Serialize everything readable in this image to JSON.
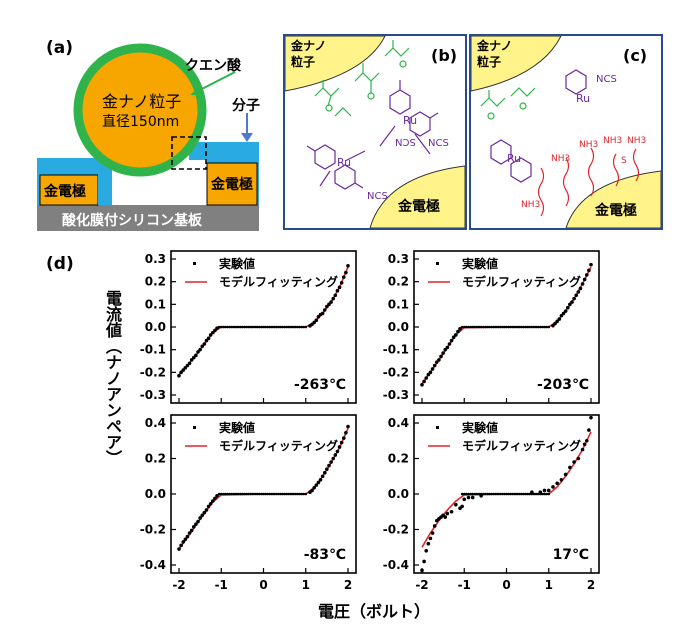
{
  "panel_a": {
    "label": "(a)",
    "citric_acid": "クエン酸",
    "particle_line1": "金ナノ粒子",
    "particle_line2": "直径150nm",
    "molecule": "分子",
    "electrode_left": "金電極",
    "electrode_right": "金電極",
    "substrate": "酸化膜付シリコン基板",
    "colors": {
      "gold": "#f7a600",
      "green": "#2fb34a",
      "blue": "#29abe2",
      "gray": "#808080"
    }
  },
  "panel_b": {
    "label": "(b)",
    "particle": [
      "金ナノ",
      "粒子"
    ],
    "electrode": "金電極",
    "ru": "Ru",
    "ncs": "NCS",
    "ncs_flipped": "SCN"
  },
  "panel_c": {
    "label": "(c)",
    "particle": [
      "金ナノ",
      "粒子"
    ],
    "electrode": "金電極",
    "ru": "Ru",
    "ncs": "NCS",
    "nh3": "NH3",
    "s": "S",
    "plus": "+"
  },
  "panel_d": {
    "label": "(d)",
    "y_axis_label": "電流値（ナノアンペア）",
    "x_axis_label": "電圧（ボルト）",
    "legend_exp": "実験値",
    "legend_model": "モデルフィッティング",
    "colors": {
      "model": "#e0262d",
      "exp": "#000000"
    }
  },
  "chart_data": [
    {
      "type": "scatter",
      "title": "-263℃",
      "xlabel": "電圧（ボルト）",
      "ylabel": "電流値（ナノアンペア）",
      "xlim": [
        -2,
        2
      ],
      "ylim": [
        -0.3,
        0.3
      ],
      "xticks": [],
      "yticks": [
        -0.3,
        -0.2,
        -0.1,
        0.0,
        0.1,
        0.2,
        0.3
      ],
      "ytick_labels": [
        "-0.3",
        "-0.2",
        "-0.1",
        "0.0",
        "0.1",
        "0.2",
        "0.3"
      ],
      "model_x": [
        -2.0,
        -1.8,
        -1.6,
        -1.4,
        -1.2,
        -1.0,
        0.0,
        1.0,
        1.2,
        1.4,
        1.6,
        1.8,
        2.0
      ],
      "model_y": [
        -0.21,
        -0.17,
        -0.125,
        -0.075,
        -0.025,
        0.0,
        0.0,
        0.0,
        0.02,
        0.06,
        0.11,
        0.175,
        0.265
      ],
      "exp_x": [
        -2.0,
        -1.95,
        -1.9,
        -1.85,
        -1.8,
        -1.75,
        -1.7,
        -1.65,
        -1.6,
        -1.55,
        -1.5,
        -1.45,
        -1.4,
        -1.35,
        -1.3,
        -1.25,
        -1.2,
        -1.15,
        -1.1,
        1.1,
        1.15,
        1.2,
        1.25,
        1.3,
        1.35,
        1.4,
        1.45,
        1.5,
        1.55,
        1.6,
        1.65,
        1.7,
        1.75,
        1.8,
        1.85,
        1.9,
        1.95,
        2.0
      ],
      "exp_y": [
        -0.215,
        -0.2,
        -0.19,
        -0.18,
        -0.17,
        -0.16,
        -0.145,
        -0.135,
        -0.125,
        -0.11,
        -0.1,
        -0.085,
        -0.075,
        -0.06,
        -0.05,
        -0.035,
        -0.025,
        -0.015,
        -0.005,
        0.005,
        0.012,
        0.02,
        0.03,
        0.045,
        0.055,
        0.06,
        0.075,
        0.09,
        0.1,
        0.11,
        0.125,
        0.14,
        0.16,
        0.175,
        0.195,
        0.22,
        0.24,
        0.27
      ],
      "legend": [
        "実験値",
        "モデルフィッティング"
      ],
      "temperature": "-263℃"
    },
    {
      "type": "scatter",
      "title": "-203℃",
      "xlim": [
        -2,
        2
      ],
      "ylim": [
        -0.3,
        0.3
      ],
      "xticks": [],
      "yticks": [
        -0.3,
        -0.2,
        -0.1,
        0.0,
        0.1,
        0.2,
        0.3
      ],
      "ytick_labels": [
        "-0.3",
        "-0.2",
        "-0.1",
        "0.0",
        "0.1",
        "0.2",
        "0.3"
      ],
      "model_x": [
        -2.0,
        -1.8,
        -1.6,
        -1.4,
        -1.2,
        -1.0,
        0.0,
        1.0,
        1.2,
        1.4,
        1.6,
        1.8,
        2.0
      ],
      "model_y": [
        -0.25,
        -0.2,
        -0.145,
        -0.09,
        -0.035,
        -0.003,
        0.0,
        0.0,
        0.025,
        0.07,
        0.125,
        0.19,
        0.265
      ],
      "exp_x": [
        -2.0,
        -1.95,
        -1.9,
        -1.85,
        -1.8,
        -1.75,
        -1.7,
        -1.65,
        -1.6,
        -1.55,
        -1.5,
        -1.45,
        -1.4,
        -1.35,
        -1.3,
        -1.25,
        -1.2,
        -1.15,
        -1.1,
        1.1,
        1.15,
        1.2,
        1.25,
        1.3,
        1.35,
        1.4,
        1.45,
        1.5,
        1.55,
        1.6,
        1.65,
        1.7,
        1.75,
        1.8,
        1.85,
        1.9,
        1.95,
        2.0
      ],
      "exp_y": [
        -0.255,
        -0.24,
        -0.225,
        -0.21,
        -0.2,
        -0.185,
        -0.17,
        -0.155,
        -0.145,
        -0.13,
        -0.115,
        -0.1,
        -0.09,
        -0.075,
        -0.06,
        -0.045,
        -0.035,
        -0.02,
        -0.008,
        0.006,
        0.015,
        0.025,
        0.035,
        0.05,
        0.06,
        0.07,
        0.085,
        0.1,
        0.11,
        0.125,
        0.14,
        0.155,
        0.17,
        0.19,
        0.21,
        0.23,
        0.25,
        0.275
      ],
      "legend": [
        "実験値",
        "モデルフィッティング"
      ],
      "temperature": "-203℃"
    },
    {
      "type": "scatter",
      "title": "-83℃",
      "xlim": [
        -2,
        2
      ],
      "ylim": [
        -0.4,
        0.4
      ],
      "xticks": [
        -2,
        -1,
        0,
        1,
        2
      ],
      "xtick_labels": [
        "-2",
        "-1",
        "0",
        "1",
        "2"
      ],
      "yticks": [
        -0.4,
        -0.2,
        0.0,
        0.2,
        0.4
      ],
      "ytick_labels": [
        "-0.4",
        "-0.2",
        "0.0",
        "0.2",
        "0.4"
      ],
      "model_x": [
        -2.0,
        -1.8,
        -1.6,
        -1.4,
        -1.2,
        -1.0,
        0.0,
        1.0,
        1.2,
        1.4,
        1.6,
        1.8,
        2.0
      ],
      "model_y": [
        -0.31,
        -0.245,
        -0.175,
        -0.11,
        -0.045,
        -0.005,
        0.0,
        0.0,
        0.035,
        0.1,
        0.175,
        0.26,
        0.37
      ],
      "exp_x": [
        -2.0,
        -1.95,
        -1.9,
        -1.85,
        -1.8,
        -1.75,
        -1.7,
        -1.65,
        -1.6,
        -1.55,
        -1.5,
        -1.45,
        -1.4,
        -1.35,
        -1.3,
        -1.25,
        -1.2,
        -1.15,
        -1.1,
        1.1,
        1.15,
        1.2,
        1.25,
        1.3,
        1.35,
        1.4,
        1.45,
        1.5,
        1.55,
        1.6,
        1.65,
        1.7,
        1.75,
        1.8,
        1.85,
        1.9,
        1.95,
        2.0
      ],
      "exp_y": [
        -0.31,
        -0.29,
        -0.27,
        -0.255,
        -0.24,
        -0.22,
        -0.205,
        -0.185,
        -0.17,
        -0.155,
        -0.135,
        -0.12,
        -0.105,
        -0.09,
        -0.07,
        -0.055,
        -0.04,
        -0.025,
        -0.01,
        0.01,
        0.02,
        0.035,
        0.05,
        0.065,
        0.08,
        0.1,
        0.12,
        0.14,
        0.16,
        0.18,
        0.2,
        0.22,
        0.24,
        0.265,
        0.29,
        0.315,
        0.345,
        0.38
      ],
      "legend": [
        "実験値",
        "モデルフィッティング"
      ],
      "temperature": "-83℃"
    },
    {
      "type": "scatter",
      "title": "17℃",
      "xlim": [
        -2,
        2
      ],
      "ylim": [
        -0.4,
        0.4
      ],
      "xticks": [
        -2,
        -1,
        0,
        1,
        2
      ],
      "xtick_labels": [
        "-2",
        "-1",
        "0",
        "1",
        "2"
      ],
      "yticks": [
        -0.4,
        -0.2,
        0.0,
        0.2,
        0.4
      ],
      "ytick_labels": [
        "-0.4",
        "-0.2",
        "0.0",
        "0.2",
        "0.4"
      ],
      "model_x": [
        -2.0,
        -1.8,
        -1.6,
        -1.4,
        -1.2,
        -1.0,
        0.0,
        1.0,
        1.2,
        1.4,
        1.6,
        1.8,
        2.0
      ],
      "model_y": [
        -0.3,
        -0.22,
        -0.15,
        -0.09,
        -0.04,
        -0.005,
        0.0,
        0.0,
        0.04,
        0.1,
        0.17,
        0.25,
        0.35
      ],
      "exp_x": [
        -2.0,
        -1.95,
        -1.9,
        -1.85,
        -1.8,
        -1.75,
        -1.7,
        -1.65,
        -1.6,
        -1.55,
        -1.5,
        -1.45,
        -1.4,
        -1.3,
        -1.2,
        -1.1,
        -1.05,
        -1.0,
        -0.9,
        -0.8,
        -0.6,
        0.6,
        0.8,
        0.9,
        1.0,
        1.1,
        1.2,
        1.3,
        1.4,
        1.5,
        1.6,
        1.7,
        1.8,
        1.85,
        1.9,
        1.95,
        2.0
      ],
      "exp_y": [
        -0.43,
        -0.38,
        -0.32,
        -0.28,
        -0.25,
        -0.22,
        -0.18,
        -0.15,
        -0.14,
        -0.13,
        -0.12,
        -0.13,
        -0.11,
        -0.1,
        -0.06,
        -0.08,
        -0.07,
        -0.03,
        -0.02,
        -0.02,
        -0.01,
        0.01,
        0.01,
        0.02,
        0.02,
        0.04,
        0.06,
        0.08,
        0.11,
        0.15,
        0.18,
        0.2,
        0.25,
        0.28,
        0.3,
        0.36,
        0.43
      ],
      "legend": [
        "実験値",
        "モデルフィッティング"
      ],
      "temperature": "17℃"
    }
  ]
}
